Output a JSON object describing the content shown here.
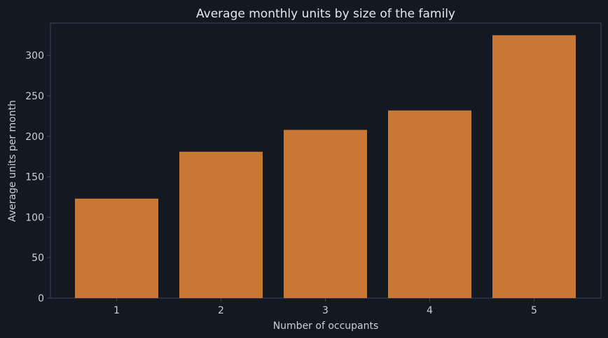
{
  "chart_data": {
    "type": "bar",
    "title": "Average monthly units by size of the family",
    "xlabel": "Number of occupants",
    "ylabel": "Average units per month",
    "categories": [
      "1",
      "2",
      "3",
      "4",
      "5"
    ],
    "values": [
      123,
      181,
      208,
      232,
      325
    ],
    "ylim": [
      0,
      340
    ],
    "yticks": [
      0,
      50,
      100,
      150,
      200,
      250,
      300
    ],
    "grid": false,
    "colors": {
      "background": "#121922",
      "bar": "#c87832",
      "axes": "#3a4552",
      "text": "#c9d0d8",
      "title": "#e6e9ed"
    }
  }
}
